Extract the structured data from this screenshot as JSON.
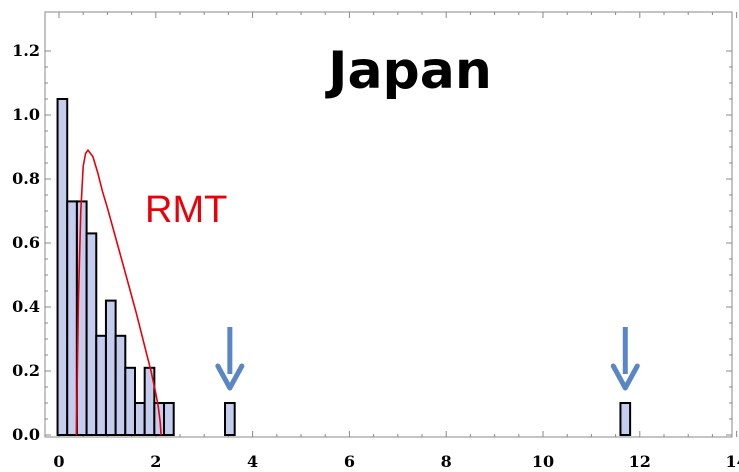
{
  "chart_data": {
    "type": "bar",
    "title": "Japan",
    "annotation": "RMT",
    "xlim": [
      0,
      14
    ],
    "ylim": [
      0,
      1.3
    ],
    "x_ticks": [
      0,
      2,
      4,
      6,
      8,
      10,
      12,
      14
    ],
    "x_tick_labels": [
      "0",
      "2",
      "4",
      "6",
      "8",
      "10",
      "12",
      "14"
    ],
    "y_ticks": [
      0.0,
      0.2,
      0.4,
      0.6,
      0.8,
      1.0,
      1.2
    ],
    "y_tick_labels": [
      "0.0",
      "0.2",
      "0.4",
      "0.6",
      "0.8",
      "1.0",
      "1.2"
    ],
    "bin_width": 0.2,
    "bins": [
      {
        "x0": -0.03,
        "x1": 0.17,
        "value": 1.05
      },
      {
        "x0": 0.17,
        "x1": 0.37,
        "value": 0.73
      },
      {
        "x0": 0.37,
        "x1": 0.57,
        "value": 0.73
      },
      {
        "x0": 0.57,
        "x1": 0.77,
        "value": 0.63
      },
      {
        "x0": 0.77,
        "x1": 0.97,
        "value": 0.31
      },
      {
        "x0": 0.97,
        "x1": 1.17,
        "value": 0.42
      },
      {
        "x0": 1.17,
        "x1": 1.37,
        "value": 0.31
      },
      {
        "x0": 1.37,
        "x1": 1.57,
        "value": 0.21
      },
      {
        "x0": 1.57,
        "x1": 1.77,
        "value": 0.1
      },
      {
        "x0": 1.77,
        "x1": 1.97,
        "value": 0.21
      },
      {
        "x0": 1.97,
        "x1": 2.17,
        "value": 0.1
      },
      {
        "x0": 2.17,
        "x1": 2.37,
        "value": 0.1
      },
      {
        "x0": 3.43,
        "x1": 3.63,
        "value": 0.1
      },
      {
        "x0": 11.6,
        "x1": 11.8,
        "value": 0.1
      }
    ],
    "rmt_curve": {
      "x": [
        0.36,
        0.4,
        0.45,
        0.5,
        0.55,
        0.6,
        0.7,
        0.8,
        0.9,
        1.0,
        1.2,
        1.4,
        1.6,
        1.8,
        1.9,
        2.0,
        2.05,
        2.09,
        2.11
      ],
      "y": [
        0.0,
        0.42,
        0.7,
        0.84,
        0.88,
        0.89,
        0.87,
        0.82,
        0.76,
        0.71,
        0.6,
        0.49,
        0.38,
        0.26,
        0.2,
        0.13,
        0.09,
        0.04,
        0.0
      ]
    },
    "arrows_x": [
      3.53,
      11.7
    ],
    "colors": {
      "bar_fill": "#c5cdee",
      "bar_stroke": "#000000",
      "curve": "#e8000b",
      "arrow": "#5b86c6",
      "frame": "#888888"
    },
    "grid": false,
    "legend": "none"
  }
}
